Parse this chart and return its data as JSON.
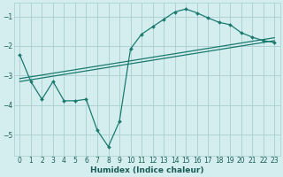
{
  "xlabel": "Humidex (Indice chaleur)",
  "background_color": "#d4eef0",
  "grid_color": "#aacdd0",
  "line_color": "#1a7a6e",
  "xlim": [
    -0.5,
    23.5
  ],
  "ylim": [
    -5.7,
    -0.55
  ],
  "yticks": [
    -5,
    -4,
    -3,
    -2,
    -1
  ],
  "xticks": [
    0,
    1,
    2,
    3,
    4,
    5,
    6,
    7,
    8,
    9,
    10,
    11,
    12,
    13,
    14,
    15,
    16,
    17,
    18,
    19,
    20,
    21,
    22,
    23
  ],
  "lines": [
    {
      "x": [
        0,
        1,
        2,
        3,
        4,
        5,
        6,
        7,
        8,
        9,
        10,
        11,
        12,
        13,
        14,
        15,
        16,
        17,
        18,
        19,
        20,
        21,
        22,
        23
      ],
      "y": [
        -2.3,
        -3.2,
        -3.8,
        -3.2,
        -3.85,
        -3.85,
        -3.8,
        -4.85,
        -5.4,
        -4.55,
        -2.1,
        -1.6,
        -1.35,
        -1.1,
        -0.85,
        -0.75,
        -0.88,
        -1.05,
        -1.2,
        -1.28,
        -1.55,
        -1.7,
        -1.82,
        -1.88
      ],
      "marker": "D",
      "markersize": 2.0,
      "linewidth": 0.9
    },
    {
      "x": [
        0,
        23
      ],
      "y": [
        -3.1,
        -1.72
      ],
      "marker": null,
      "markersize": 0,
      "linewidth": 0.9
    },
    {
      "x": [
        0,
        23
      ],
      "y": [
        -3.2,
        -1.82
      ],
      "marker": null,
      "markersize": 0,
      "linewidth": 0.9
    }
  ]
}
